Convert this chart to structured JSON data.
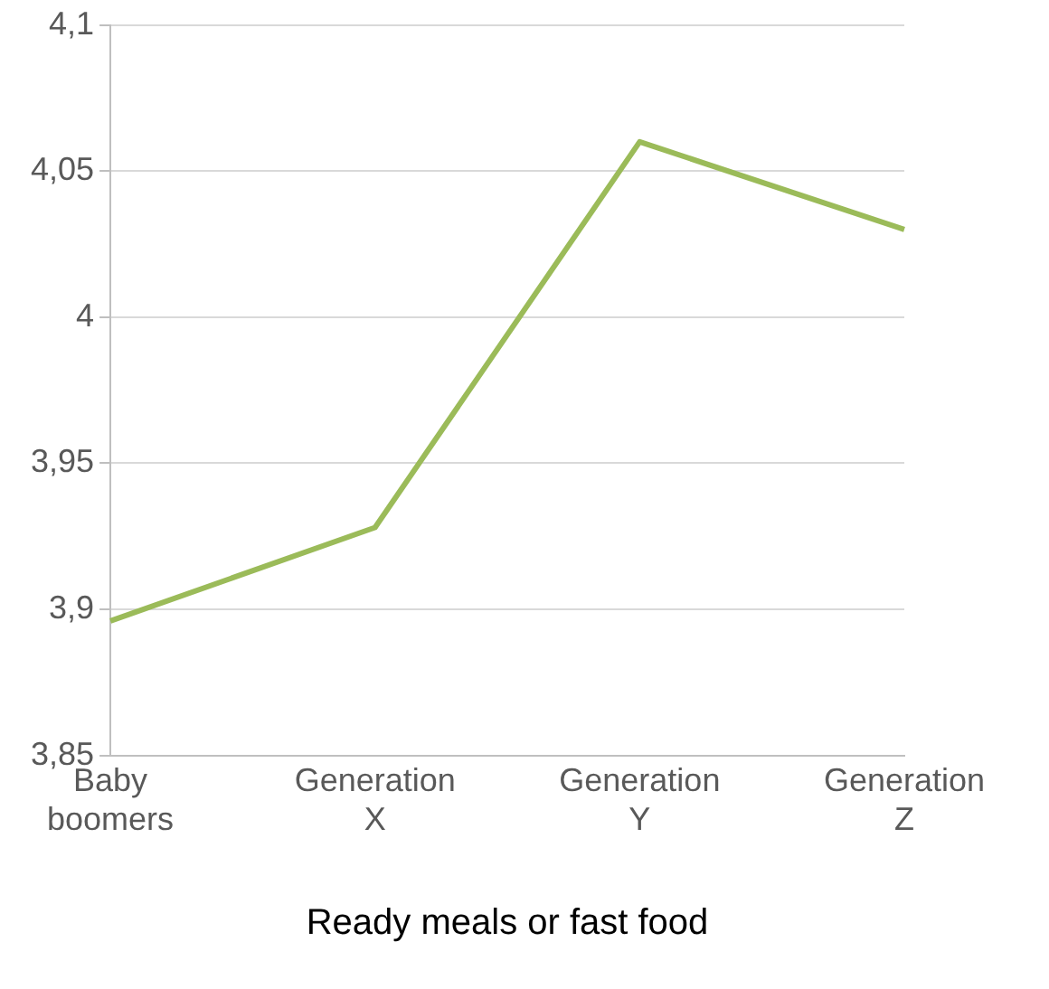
{
  "chart_data": {
    "type": "line",
    "xlabel": "Ready meals or fast food",
    "categories": [
      "Baby boomers",
      "Generation X",
      "Generation Y",
      "Generation Z"
    ],
    "series": [
      {
        "color": "#9bbb59",
        "values": [
          3.896,
          3.928,
          4.06,
          4.03
        ]
      }
    ],
    "ylim": [
      3.85,
      4.1
    ],
    "yticks": [
      {
        "value": 3.85,
        "label": "3,85"
      },
      {
        "value": 3.9,
        "label": "3,9"
      },
      {
        "value": 3.95,
        "label": "3,95"
      },
      {
        "value": 4,
        "label": "4"
      },
      {
        "value": 4.05,
        "label": "4,05"
      },
      {
        "value": 4.1,
        "label": "4,1"
      }
    ],
    "grid": "y",
    "legend": false,
    "marker": "none",
    "line_style": "solid"
  }
}
